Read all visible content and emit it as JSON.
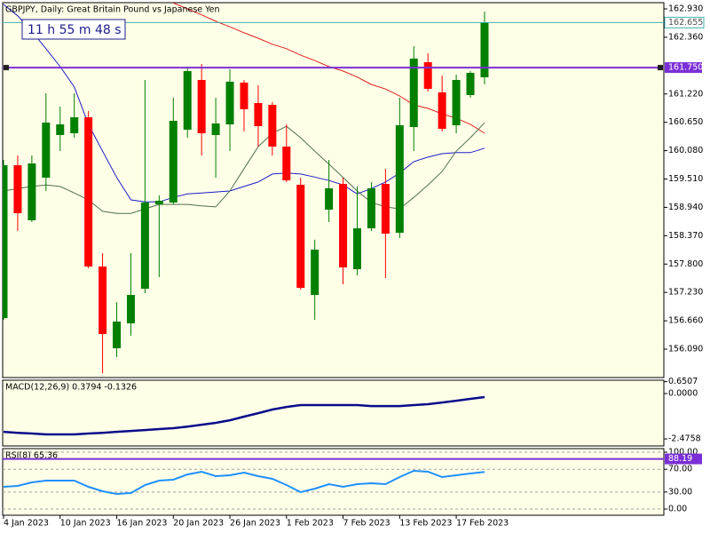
{
  "chart_data": [
    {
      "type": "candlestick",
      "title": "GBPJPY, Daily:  Great Britain Pound vs Japanese Yen",
      "timer": "11 h 55 m 48 s",
      "categories": [
        "4 Jan 2023",
        null,
        null,
        null,
        "10 Jan 2023",
        null,
        null,
        null,
        "16 Jan 2023",
        null,
        null,
        null,
        "20 Jan 2023",
        null,
        null,
        null,
        "26 Jan 2023",
        null,
        null,
        null,
        "1 Feb 2023",
        null,
        null,
        null,
        "7 Feb 2023",
        null,
        null,
        null,
        "13 Feb 2023",
        null,
        null,
        null,
        "17 Feb 2023",
        null,
        null
      ],
      "open": [
        156.715,
        159.787,
        158.68,
        159.537,
        160.394,
        160.43,
        160.751,
        157.751,
        156.108,
        156.608,
        157.304,
        159.001,
        159.037,
        160.501,
        161.501,
        160.394,
        160.608,
        161.448,
        161.037,
        161.001,
        160.162,
        159.394,
        157.179,
        158.894,
        159.412,
        157.697,
        158.519,
        159.412,
        158.43,
        160.555,
        161.858,
        161.251,
        160.59,
        161.198,
        161.555
      ],
      "high": [
        159.894,
        159.983,
        159.983,
        161.233,
        160.966,
        161.233,
        160.876,
        158.019,
        157.036,
        158.019,
        161.501,
        159.18,
        161.144,
        161.769,
        161.823,
        161.144,
        161.716,
        161.501,
        161.394,
        161.055,
        160.608,
        159.537,
        158.289,
        159.894,
        159.537,
        159.358,
        159.448,
        159.716,
        161.144,
        162.18,
        162.037,
        161.591,
        161.609,
        161.68,
        162.876
      ],
      "low": [
        156.679,
        158.465,
        158.644,
        159.269,
        160.073,
        160.34,
        157.715,
        155.607,
        155.928,
        156.359,
        157.215,
        157.537,
        159.001,
        160.34,
        159.983,
        159.537,
        160.073,
        160.466,
        160.162,
        159.983,
        159.448,
        157.287,
        156.679,
        158.644,
        157.394,
        157.572,
        158.465,
        157.519,
        158.322,
        160.073,
        161.269,
        160.466,
        160.43,
        161.144,
        161.412
      ],
      "close": [
        159.787,
        158.823,
        159.823,
        160.644,
        160.608,
        160.751,
        157.751,
        156.394,
        156.644,
        157.179,
        159.037,
        159.073,
        160.68,
        161.68,
        160.43,
        160.626,
        161.466,
        160.912,
        160.573,
        160.162,
        159.483,
        157.322,
        158.09,
        159.323,
        157.733,
        158.519,
        159.323,
        158.412,
        160.59,
        161.93,
        161.323,
        160.519,
        161.501,
        161.644,
        162.655
      ],
      "up_color": "#008000",
      "down_color": "#ff0000",
      "lines": [
        {
          "color": "#e02020",
          "values": [
            null,
            null,
            null,
            null,
            null,
            null,
            null,
            null,
            null,
            null,
            null,
            null,
            163.05,
            162.93,
            162.81,
            162.68,
            162.57,
            162.45,
            162.34,
            162.22,
            162.13,
            162.0,
            161.89,
            161.77,
            161.68,
            161.56,
            161.41,
            161.32,
            161.18,
            161.0,
            160.93,
            160.82,
            160.73,
            160.61,
            160.43
          ]
        },
        {
          "color": "#1c1cc8",
          "values": [
            163.02,
            162.79,
            162.48,
            162.13,
            161.77,
            161.36,
            160.61,
            160.07,
            159.54,
            159.09,
            159.05,
            159.05,
            159.14,
            159.21,
            159.23,
            159.25,
            159.27,
            159.36,
            159.45,
            159.61,
            159.63,
            159.61,
            159.55,
            159.48,
            159.39,
            159.21,
            159.32,
            159.45,
            159.63,
            159.86,
            159.95,
            160.02,
            160.04,
            160.04,
            160.13
          ]
        },
        {
          "color": "#4f6f4f",
          "values": [
            159.27,
            159.32,
            159.36,
            159.39,
            159.36,
            159.23,
            159.09,
            158.86,
            158.82,
            158.82,
            158.91,
            159.0,
            159.0,
            159.0,
            158.97,
            158.95,
            159.27,
            159.72,
            160.16,
            160.43,
            160.57,
            160.34,
            160.07,
            159.81,
            159.54,
            159.27,
            159.04,
            158.95,
            158.91,
            159.14,
            159.39,
            159.66,
            160.07,
            160.34,
            160.64
          ]
        }
      ],
      "levels": [
        {
          "value": {
            "value": 161.75,
            "label": "161.750"
          },
          "color": "#7b2fd6"
        }
      ],
      "current_price": 162.655,
      "current_color": "#40b0b0",
      "ylim": [
        155.519,
        163.055
      ],
      "yticks": [
        {
          "value": 162.93,
          "label": "162.930"
        },
        {
          "value": 162.36,
          "label": "162.360"
        },
        {
          "value": 161.22,
          "label": "161.220"
        },
        {
          "value": 160.65,
          "label": "160.650"
        },
        {
          "value": 160.08,
          "label": "160.080"
        },
        {
          "value": 159.51,
          "label": "159.510"
        },
        {
          "value": 158.94,
          "label": "158.940"
        },
        {
          "value": 158.37,
          "label": "158.370"
        },
        {
          "value": 157.8,
          "label": "157.800"
        },
        {
          "value": 157.23,
          "label": "157.230"
        },
        {
          "value": 156.66,
          "label": "156.660"
        },
        {
          "value": 156.09,
          "label": "156.090"
        }
      ],
      "grid": false
    },
    {
      "type": "line",
      "title": "MACD(12,26,9) 0.3794 -0.1326",
      "series": [
        {
          "color": "#0a0a8c",
          "values": [
            -2.09,
            -2.14,
            -2.18,
            -2.23,
            -2.23,
            -2.23,
            -2.18,
            -2.14,
            -2.09,
            -2.04,
            -1.99,
            -1.94,
            -1.89,
            -1.8,
            -1.7,
            -1.6,
            -1.46,
            -1.26,
            -1.07,
            -0.87,
            -0.73,
            -0.63,
            -0.63,
            -0.63,
            -0.63,
            -0.63,
            -0.68,
            -0.68,
            -0.68,
            -0.63,
            -0.58,
            -0.49,
            -0.39,
            -0.29,
            -0.19
          ]
        }
      ],
      "ylim": [
        -2.86,
        0.73
      ],
      "yticks": [
        0.6507,
        {
          "value": 0,
          "label": "0.0000"
        },
        -2.4758
      ],
      "grid": false
    },
    {
      "type": "line",
      "title": "RSI(8) 65.36",
      "series": [
        {
          "color": "#1e90ff",
          "values": [
            39.1,
            40.6,
            46.9,
            50.0,
            50.0,
            50.0,
            39.1,
            31.3,
            26.6,
            28.1,
            42.2,
            50.0,
            51.6,
            60.9,
            65.6,
            57.8,
            59.4,
            64.1,
            57.8,
            53.1,
            42.2,
            29.7,
            35.9,
            43.8,
            39.1,
            43.8,
            45.3,
            43.8,
            56.3,
            67.2,
            65.6,
            56.3,
            59.4,
            62.5,
            65.36
          ]
        }
      ],
      "levels": [
        {
          "value": 88.19,
          "color": "#7b2fd6"
        }
      ],
      "ylim": [
        -10.9,
        106.3
      ],
      "yticks": [
        {
          "value": 100,
          "label": "100.00"
        },
        {
          "value": 70,
          "label": "70.00"
        },
        {
          "value": 30,
          "label": "30.00"
        },
        {
          "value": 0,
          "label": "0.00"
        }
      ],
      "grid": true
    }
  ]
}
